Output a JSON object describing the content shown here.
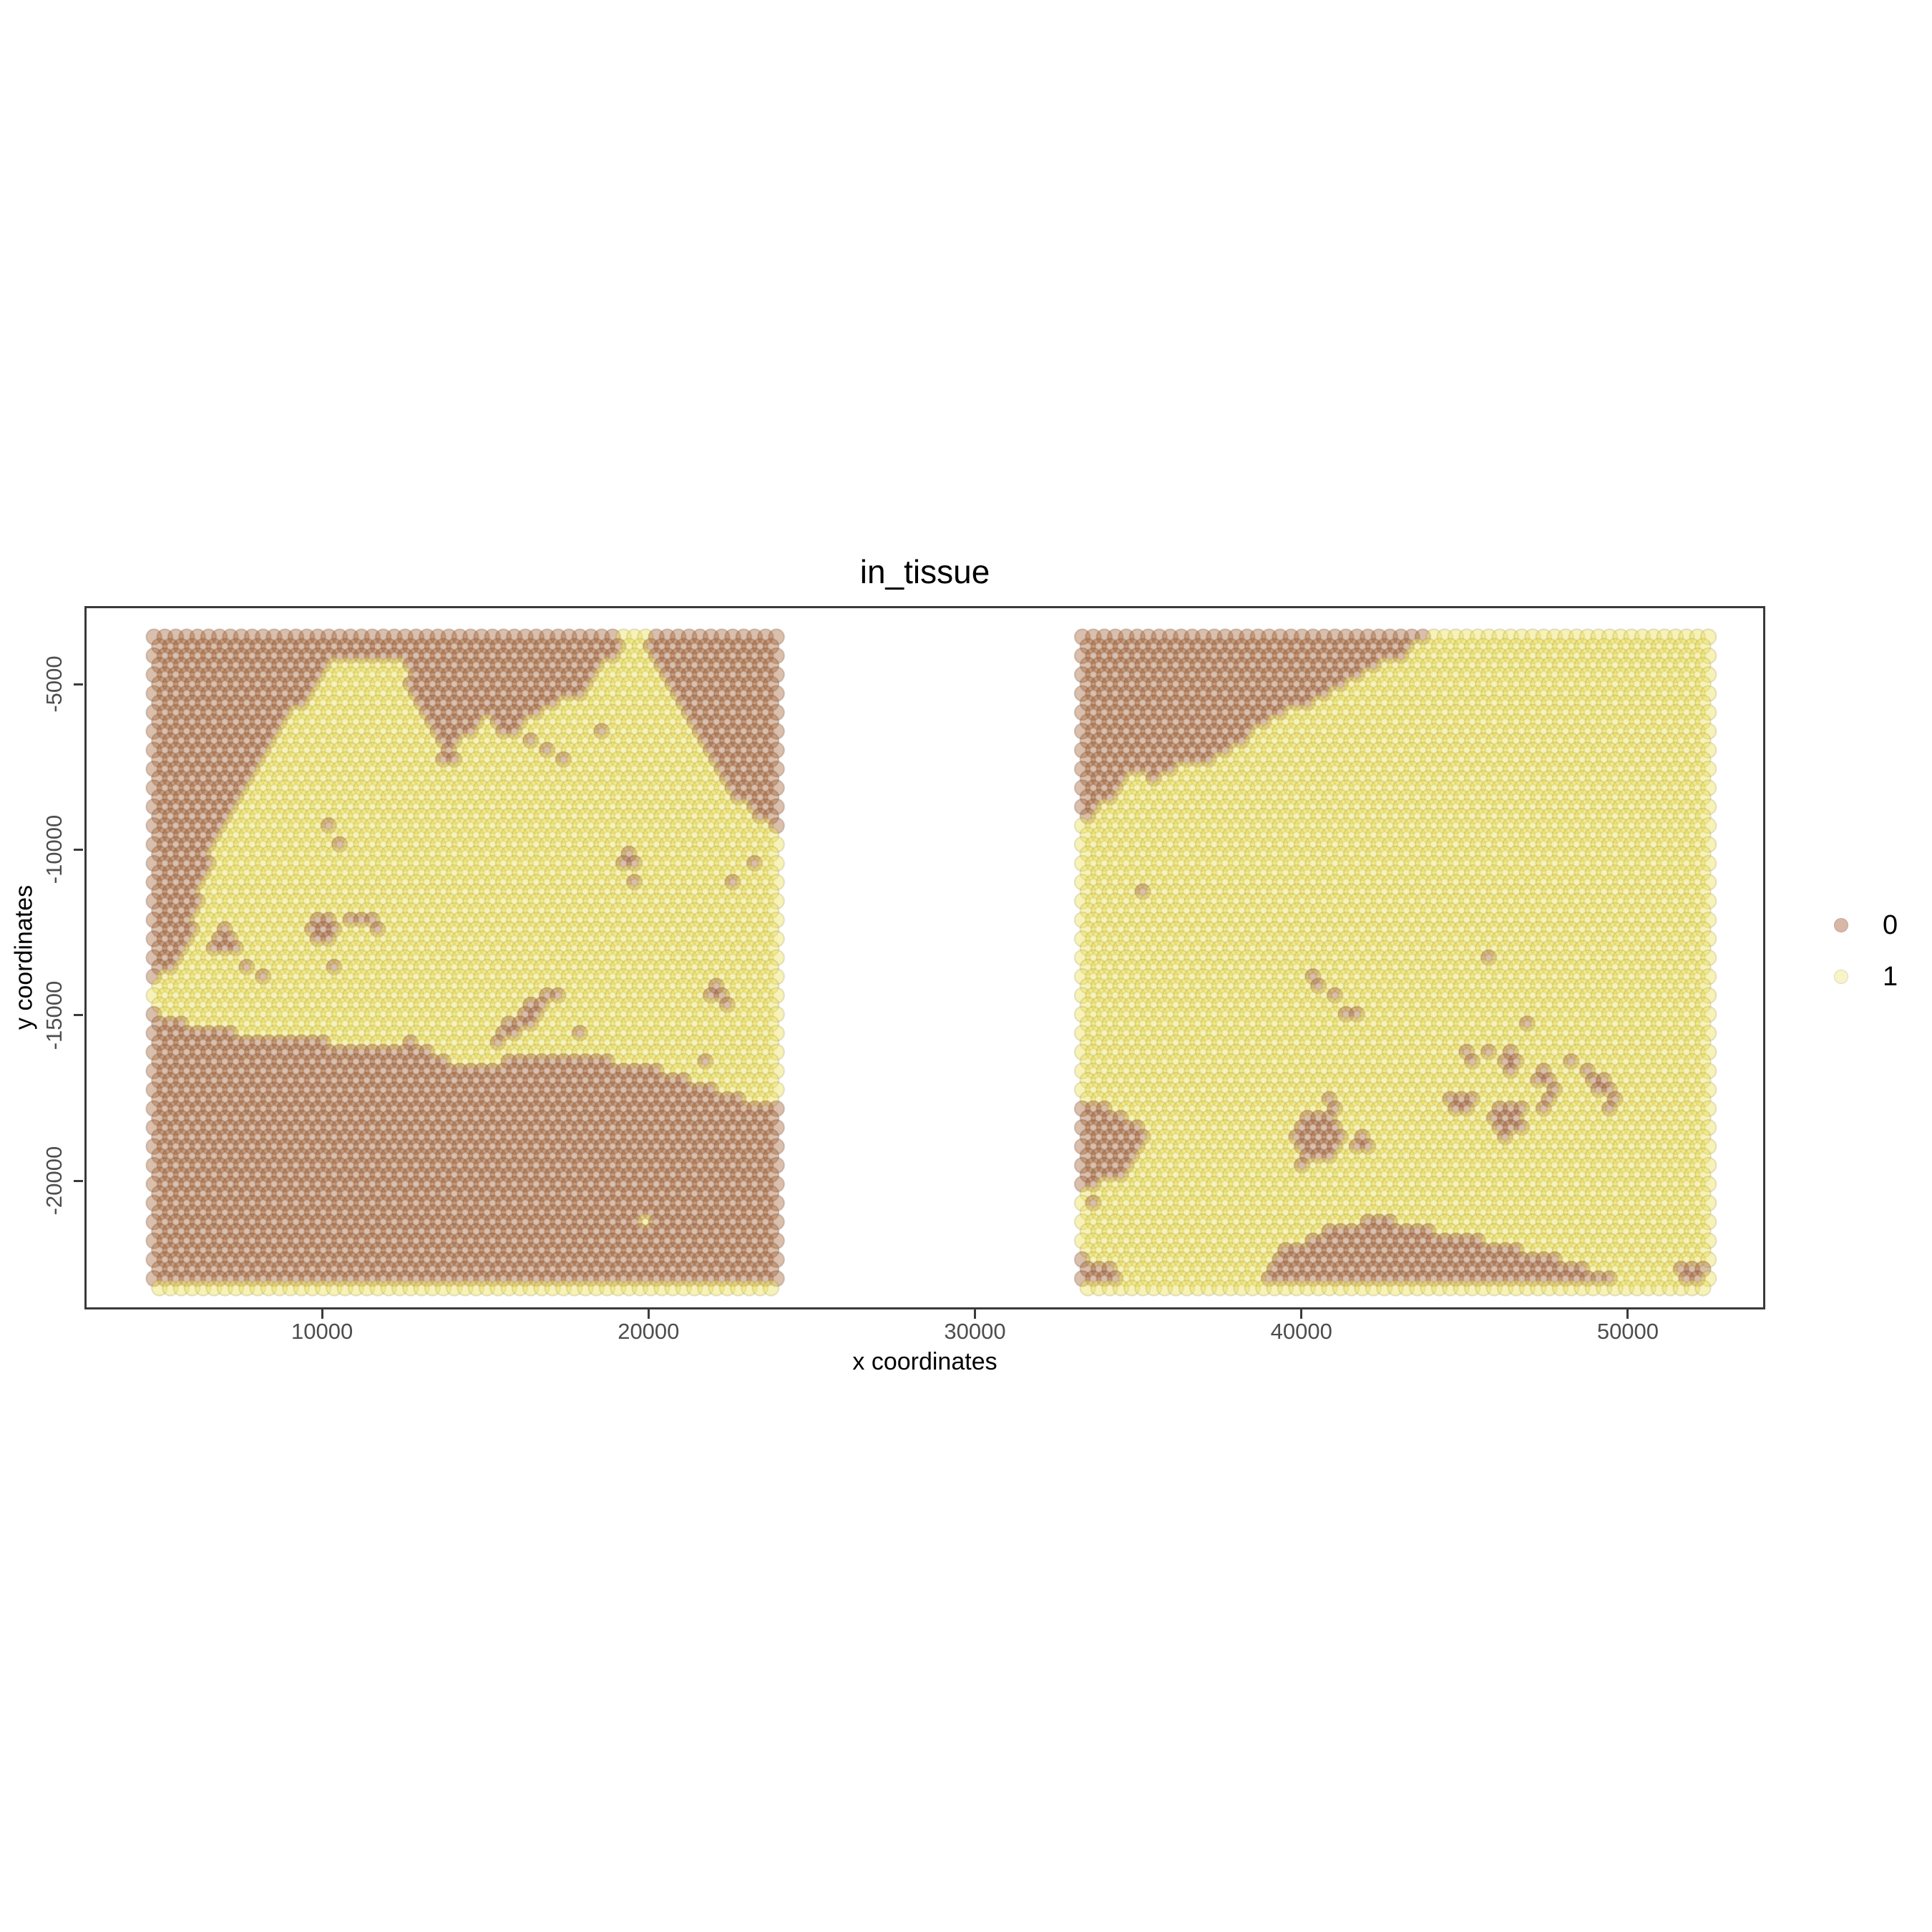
{
  "title": "in_tissue",
  "axes": {
    "x_label": "x coordinates",
    "y_label": "y coordinates",
    "x_ticks": [
      10000,
      20000,
      30000,
      40000,
      50000
    ],
    "y_ticks": [
      -5000,
      -10000,
      -15000,
      -20000
    ]
  },
  "legend": {
    "entries": [
      {
        "label": "0",
        "swatch": "#d8b7a6"
      },
      {
        "label": "1",
        "swatch": "#f8f3c9"
      }
    ]
  },
  "colors": {
    "background": "#ffffff",
    "panel_border": "#3a3a3a",
    "tick_label": "#4d4d4d",
    "text": "#000000"
  },
  "chart_data": {
    "type": "scatter",
    "title": "in_tissue",
    "xlabel": "x coordinates",
    "ylabel": "y coordinates",
    "xlim": [
      2720,
      54210
    ],
    "ylim": [
      -23890,
      -2640
    ],
    "grid": false,
    "legend_position": "right",
    "point_style": {
      "radius_px": 10.8,
      "spacing_x_px": 15.28,
      "spacing_y_px": 13.22,
      "alpha": 0.42,
      "packing": "hexagonal"
    },
    "classes": {
      "0": {
        "fill": "#a8663c",
        "stroke": "rgba(95,53,23,0.30)",
        "single_dot_appearance": "#d8b7a6"
      },
      "1": {
        "fill": "#ecdf55",
        "stroke": "rgba(138,122,40,0.27)",
        "single_dot_appearance": "#f8f3c9"
      }
    },
    "panels": [
      {
        "name": "left-capture-area",
        "x_range": [
          4850,
          23920
        ],
        "y_range": [
          -23240,
          -3570
        ],
        "default_class": "1",
        "brown_polygons": [
          [
            [
              0,
              0
            ],
            [
              0.75,
              0
            ],
            [
              0.75,
              0.032
            ],
            [
              0,
              0.032
            ]
          ],
          [
            [
              0.79,
              0
            ],
            [
              1,
              0
            ],
            [
              1,
              0.032
            ],
            [
              0.79,
              0.032
            ]
          ],
          [
            [
              0,
              0
            ],
            [
              0.33,
              0
            ],
            [
              0.312,
              0.012
            ],
            [
              0.268,
              0.062
            ],
            [
              0.232,
              0.108
            ],
            [
              0.212,
              0.128
            ],
            [
              0.19,
              0.162
            ],
            [
              0.172,
              0.192
            ],
            [
              0.152,
              0.227
            ],
            [
              0.132,
              0.257
            ],
            [
              0.116,
              0.287
            ],
            [
              0.098,
              0.318
            ],
            [
              0.09,
              0.35
            ],
            [
              0.078,
              0.385
            ],
            [
              0.068,
              0.425
            ],
            [
              0.058,
              0.468
            ],
            [
              0.038,
              0.503
            ],
            [
              0,
              0.533
            ]
          ],
          [
            [
              0.4,
              0
            ],
            [
              0.73,
              0
            ],
            [
              0.72,
              0.05
            ],
            [
              0.685,
              0.09
            ],
            [
              0.645,
              0.1
            ],
            [
              0.605,
              0.13
            ],
            [
              0.565,
              0.155
            ],
            [
              0.53,
              0.125
            ],
            [
              0.495,
              0.16
            ],
            [
              0.475,
              0.185
            ],
            [
              0.45,
              0.145
            ],
            [
              0.425,
              0.125
            ],
            [
              0.41,
              0.075
            ]
          ],
          [
            [
              0.79,
              0
            ],
            [
              1,
              0
            ],
            [
              1,
              0.295
            ],
            [
              0.955,
              0.27
            ],
            [
              0.93,
              0.24
            ],
            [
              0.905,
              0.21
            ],
            [
              0.88,
              0.175
            ],
            [
              0.86,
              0.14
            ],
            [
              0.835,
              0.1
            ],
            [
              0.815,
              0.065
            ],
            [
              0.8,
              0.03
            ]
          ],
          [
            [
              0,
              0.575
            ],
            [
              0.05,
              0.592
            ],
            [
              0.09,
              0.603
            ],
            [
              0.15,
              0.61
            ],
            [
              0.22,
              0.617
            ],
            [
              0.3,
              0.625
            ],
            [
              0.37,
              0.632
            ],
            [
              0.42,
              0.618
            ],
            [
              0.45,
              0.64
            ],
            [
              0.49,
              0.662
            ],
            [
              0.53,
              0.663
            ],
            [
              0.57,
              0.648
            ],
            [
              0.63,
              0.645
            ],
            [
              0.7,
              0.646
            ],
            [
              0.78,
              0.657
            ],
            [
              0.84,
              0.676
            ],
            [
              0.9,
              0.695
            ],
            [
              0.95,
              0.71
            ],
            [
              1,
              0.72
            ],
            [
              1,
              1
            ],
            [
              0,
              1
            ]
          ]
        ],
        "brown_spots": [
          [
            0.28,
            0.295,
            0.012
          ],
          [
            0.292,
            0.322,
            0.01
          ],
          [
            0.115,
            0.468,
            0.022
          ],
          [
            0.148,
            0.503,
            0.012
          ],
          [
            0.172,
            0.527,
            0.01
          ],
          [
            0.27,
            0.452,
            0.027
          ],
          [
            0.313,
            0.436,
            0.014
          ],
          [
            0.344,
            0.432,
            0.012
          ],
          [
            0.362,
            0.447,
            0.01
          ],
          [
            0.296,
            0.506,
            0.009
          ],
          [
            0.604,
            0.162,
            0.01
          ],
          [
            0.628,
            0.178,
            0.009
          ],
          [
            0.655,
            0.192,
            0.009
          ],
          [
            0.475,
            0.19,
            0.011
          ],
          [
            0.723,
            0.15,
            0.01
          ],
          [
            0.555,
            0.617,
            0.013
          ],
          [
            0.576,
            0.602,
            0.013
          ],
          [
            0.597,
            0.586,
            0.015
          ],
          [
            0.617,
            0.57,
            0.013
          ],
          [
            0.633,
            0.556,
            0.011
          ],
          [
            0.648,
            0.545,
            0.01
          ],
          [
            0.69,
            0.612,
            0.01
          ],
          [
            0.765,
            0.345,
            0.015
          ],
          [
            0.775,
            0.378,
            0.01
          ],
          [
            0.928,
            0.373,
            0.013
          ],
          [
            0.958,
            0.346,
            0.009
          ],
          [
            0.905,
            0.548,
            0.014
          ],
          [
            0.925,
            0.562,
            0.01
          ],
          [
            0.89,
            0.65,
            0.01
          ]
        ],
        "yellow_spots": [
          [
            0.79,
            0.9,
            0.008
          ]
        ]
      },
      {
        "name": "right-capture-area",
        "x_range": [
          33290,
          52470
        ],
        "y_range": [
          -23240,
          -3570
        ],
        "default_class": "1",
        "brown_polygons": [
          [
            [
              0,
              0
            ],
            [
              0.55,
              0
            ],
            [
              0.505,
              0.032
            ],
            [
              0.46,
              0.052
            ],
            [
              0.42,
              0.068
            ],
            [
              0.385,
              0.092
            ],
            [
              0.335,
              0.112
            ],
            [
              0.29,
              0.132
            ],
            [
              0.26,
              0.162
            ],
            [
              0.225,
              0.187
            ],
            [
              0.16,
              0.192
            ],
            [
              0.115,
              0.227
            ],
            [
              0.082,
              0.207
            ],
            [
              0.05,
              0.242
            ],
            [
              0.02,
              0.267
            ],
            [
              0,
              0.282
            ]
          ],
          [
            [
              0,
              0.712
            ],
            [
              0.045,
              0.722
            ],
            [
              0.075,
              0.737
            ],
            [
              0.1,
              0.757
            ],
            [
              0.105,
              0.782
            ],
            [
              0.085,
              0.802
            ],
            [
              0.065,
              0.827
            ],
            [
              0.03,
              0.842
            ],
            [
              0,
              0.852
            ]
          ],
          [
            [
              0.28,
              1
            ],
            [
              0.295,
              0.962
            ],
            [
              0.315,
              0.947
            ],
            [
              0.34,
              0.932
            ],
            [
              0.38,
              0.917
            ],
            [
              0.42,
              0.902
            ],
            [
              0.47,
              0.895
            ],
            [
              0.52,
              0.902
            ],
            [
              0.57,
              0.913
            ],
            [
              0.62,
              0.926
            ],
            [
              0.67,
              0.932
            ],
            [
              0.72,
              0.946
            ],
            [
              0.77,
              0.959
            ],
            [
              0.82,
              0.973
            ],
            [
              0.87,
              0.989
            ],
            [
              0.88,
              1
            ]
          ],
          [
            [
              0,
              0.952
            ],
            [
              0.042,
              0.965
            ],
            [
              0.055,
              0.985
            ],
            [
              0.05,
              1
            ],
            [
              0,
              1
            ]
          ],
          [
            [
              0.945,
              0.972
            ],
            [
              0.99,
              0.966
            ],
            [
              1,
              0.986
            ],
            [
              1,
              1
            ],
            [
              0.95,
              1
            ]
          ]
        ],
        "brown_spots": [
          [
            0.375,
            0.532,
            0.014
          ],
          [
            0.397,
            0.547,
            0.01
          ],
          [
            0.432,
            0.577,
            0.012
          ],
          [
            0.65,
            0.492,
            0.013
          ],
          [
            0.705,
            0.592,
            0.01
          ],
          [
            0.378,
            0.768,
            0.042
          ],
          [
            0.402,
            0.72,
            0.013
          ],
          [
            0.447,
            0.782,
            0.015
          ],
          [
            0.356,
            0.802,
            0.012
          ],
          [
            0.615,
            0.645,
            0.012
          ],
          [
            0.652,
            0.638,
            0.01
          ],
          [
            0.688,
            0.652,
            0.018
          ],
          [
            0.607,
            0.715,
            0.02
          ],
          [
            0.678,
            0.742,
            0.03
          ],
          [
            0.735,
            0.675,
            0.013
          ],
          [
            0.75,
            0.705,
            0.013
          ],
          [
            0.74,
            0.73,
            0.01
          ],
          [
            0.775,
            0.65,
            0.01
          ],
          [
            0.827,
            0.687,
            0.018
          ],
          [
            0.81,
            0.662,
            0.009
          ],
          [
            0.845,
            0.703,
            0.01
          ],
          [
            0.84,
            0.725,
            0.009
          ],
          [
            0.09,
            0.387,
            0.009
          ],
          [
            0.015,
            0.868,
            0.01
          ]
        ],
        "yellow_spots": []
      }
    ]
  }
}
